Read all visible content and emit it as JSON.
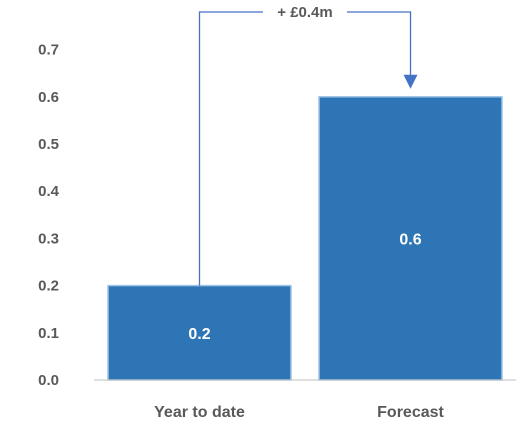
{
  "chart_data": {
    "type": "bar",
    "categories": [
      "Year to date",
      "Forecast"
    ],
    "values": [
      0.2,
      0.6
    ],
    "data_labels": [
      "0.2",
      "0.6"
    ],
    "yticks": [
      "0.0",
      "0.1",
      "0.2",
      "0.3",
      "0.4",
      "0.5",
      "0.6",
      "0.7"
    ],
    "ytick_values": [
      0,
      0.1,
      0.2,
      0.3,
      0.4,
      0.5,
      0.6,
      0.7
    ],
    "ylim": [
      0,
      0.8
    ],
    "grid": false,
    "legend": "none",
    "title": "",
    "xlabel": "",
    "ylabel": "",
    "annotation": {
      "text": "+ £0.4m",
      "from_category": "Year to date",
      "to_category": "Forecast"
    },
    "colors": {
      "bar": "#2E75B6",
      "bar_edge": "#9DC3E6",
      "connector": "#4472C4",
      "axis": "#BFBFBF",
      "text": "#595959",
      "data_label": "#FFFFFF"
    }
  }
}
